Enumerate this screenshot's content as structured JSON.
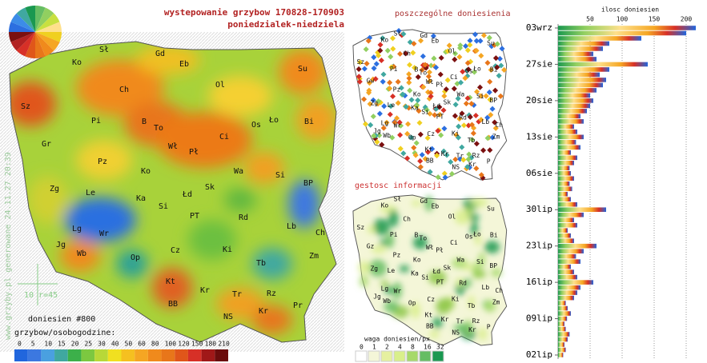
{
  "header": {
    "title": "wystepowanie grzybow 170828-170903",
    "subtitle": "poniedzialek-niedziela"
  },
  "watermark": "www.grzyby.pl generowane 24.11.27 20:39",
  "main_map": {
    "labels": [
      "Sł",
      "Gd",
      "Ko",
      "Eb",
      "Su",
      "Sz",
      "Ch",
      "Ol",
      "B",
      "To",
      "Pi",
      "Ło",
      "Os",
      "Bi",
      "Ci",
      "Gr",
      "Wł",
      "Pł",
      "Pz",
      "Ko",
      "Wa",
      "Si",
      "BP",
      "Zg",
      "Le",
      "Sk",
      "Ka",
      "Łd",
      "Si",
      "PT",
      "Rd",
      "Lb",
      "Lg",
      "Wr",
      "Ch",
      "Jg",
      "Wb",
      "Op",
      "Cz",
      "Ki",
      "Zm",
      "Tb",
      "Kt",
      "Kr",
      "Tr",
      "Rz",
      "BB",
      "NS",
      "Kr",
      "Pr"
    ],
    "scale_label": "10 r=45",
    "report_count": "doniesien #800",
    "legend_title": "grzybow/osobogodzine:",
    "legend_ticks": [
      0,
      5,
      10,
      15,
      20,
      25,
      30,
      40,
      50,
      60,
      80,
      100,
      120,
      150,
      180,
      210
    ]
  },
  "reports_map": {
    "title": "poszczególne doniesienia",
    "labels": [
      "Sł",
      "Gd",
      "Ko",
      "Eb",
      "Su",
      "Sz",
      "Ch",
      "Ol",
      "B",
      "To",
      "Pi",
      "Ło",
      "Os",
      "Bi",
      "Ci",
      "Gw",
      "Wł",
      "Pł",
      "Pz",
      "Ko",
      "Wa",
      "Si",
      "BP",
      "Zg",
      "Le",
      "Sk",
      "Ka",
      "Łd",
      "Si",
      "PT",
      "Rd",
      "Lb",
      "Lg",
      "Wr",
      "Ch",
      "Jg",
      "Wb",
      "Op",
      "Cz",
      "Ki",
      "Zm",
      "Tb",
      "Kt",
      "Kr",
      "Tr",
      "Rz",
      "BB",
      "NS",
      "Kr",
      "P"
    ]
  },
  "density_map": {
    "title": "gestosc informacji",
    "labels": [
      "Sł",
      "Gd",
      "Ko",
      "Eb",
      "Su",
      "Sz",
      "Ch",
      "Ol",
      "B",
      "To",
      "Pi",
      "Ło",
      "Os",
      "Bi",
      "Ci",
      "Gz",
      "Wł",
      "Pł",
      "Pz",
      "Ko",
      "Wa",
      "Si",
      "BP",
      "Zg",
      "Le",
      "Sk",
      "Ka",
      "Łd",
      "Si",
      "PT",
      "Rd",
      "Lb",
      "Lg",
      "Wr",
      "Ch",
      "Jg",
      "Wb",
      "Op",
      "Cz",
      "Ki",
      "Zm",
      "Tb",
      "Kt",
      "Kr",
      "Tr",
      "Rz",
      "BB",
      "NS",
      "Kr",
      "P"
    ],
    "legend_title": "waga doniesien/px",
    "legend_ticks": [
      0,
      1,
      2,
      4,
      8,
      16,
      32
    ]
  },
  "chart_data": {
    "type": "bar",
    "orientation": "horizontal",
    "title": "ilosc doniesien",
    "categories": [
      "02lip",
      null,
      null,
      null,
      null,
      null,
      null,
      "09lip",
      null,
      null,
      null,
      null,
      null,
      null,
      "16lip",
      null,
      null,
      null,
      null,
      null,
      null,
      "23lip",
      null,
      null,
      null,
      null,
      null,
      null,
      "30lip",
      null,
      null,
      null,
      null,
      null,
      null,
      "06sie",
      null,
      null,
      null,
      null,
      null,
      null,
      "13sie",
      null,
      null,
      null,
      null,
      null,
      null,
      "20sie",
      null,
      null,
      null,
      null,
      null,
      null,
      "27sie",
      null,
      null,
      null,
      null,
      null,
      null,
      "03wrz"
    ],
    "values": [
      8,
      12,
      10,
      15,
      18,
      12,
      10,
      14,
      20,
      15,
      12,
      25,
      30,
      35,
      55,
      30,
      25,
      20,
      35,
      28,
      40,
      60,
      25,
      20,
      15,
      30,
      25,
      40,
      75,
      30,
      20,
      15,
      22,
      18,
      25,
      20,
      18,
      25,
      30,
      20,
      35,
      28,
      40,
      30,
      25,
      40,
      35,
      45,
      50,
      55,
      50,
      60,
      70,
      75,
      65,
      80,
      140,
      60,
      55,
      70,
      80,
      130,
      200,
      215
    ],
    "xlim": [
      0,
      225
    ],
    "xticks": [
      50,
      100,
      150,
      200
    ],
    "grid": true
  }
}
